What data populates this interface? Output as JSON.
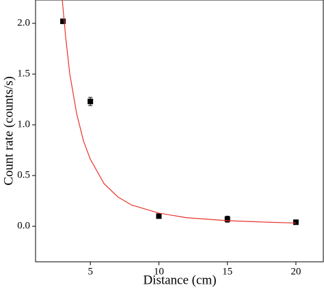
{
  "chart_data": {
    "type": "scatter",
    "xlabel": "Distance (cm)",
    "ylabel": "Count rate (counts/s)",
    "xlim": [
      1,
      22
    ],
    "ylim": [
      -0.35,
      2.23
    ],
    "xticks": [
      5,
      10,
      15,
      20
    ],
    "yticks": [
      {
        "value": 0,
        "label": "0.0"
      },
      {
        "value": 0.5,
        "label": "0.5"
      },
      {
        "value": 1,
        "label": "1.0"
      },
      {
        "value": 1.5,
        "label": "1.5"
      },
      {
        "value": 2,
        "label": "2.0"
      }
    ],
    "series": [
      {
        "kind": "points",
        "color": "#000000",
        "x": [
          3,
          5,
          10,
          15,
          20
        ],
        "values": [
          2.02,
          1.23,
          0.1,
          0.07,
          0.04
        ],
        "errors": [
          0.01,
          0.04,
          0.01,
          0.03,
          0.01
        ]
      },
      {
        "kind": "line",
        "color": "#e8332a",
        "x": [
          2.95,
          3.2,
          3.5,
          4,
          4.5,
          5,
          6,
          7,
          8,
          10,
          12,
          15,
          18,
          20
        ],
        "values": [
          2.23,
          1.86,
          1.5,
          1.11,
          0.84,
          0.66,
          0.42,
          0.29,
          0.21,
          0.13,
          0.085,
          0.055,
          0.04,
          0.032
        ]
      }
    ]
  }
}
